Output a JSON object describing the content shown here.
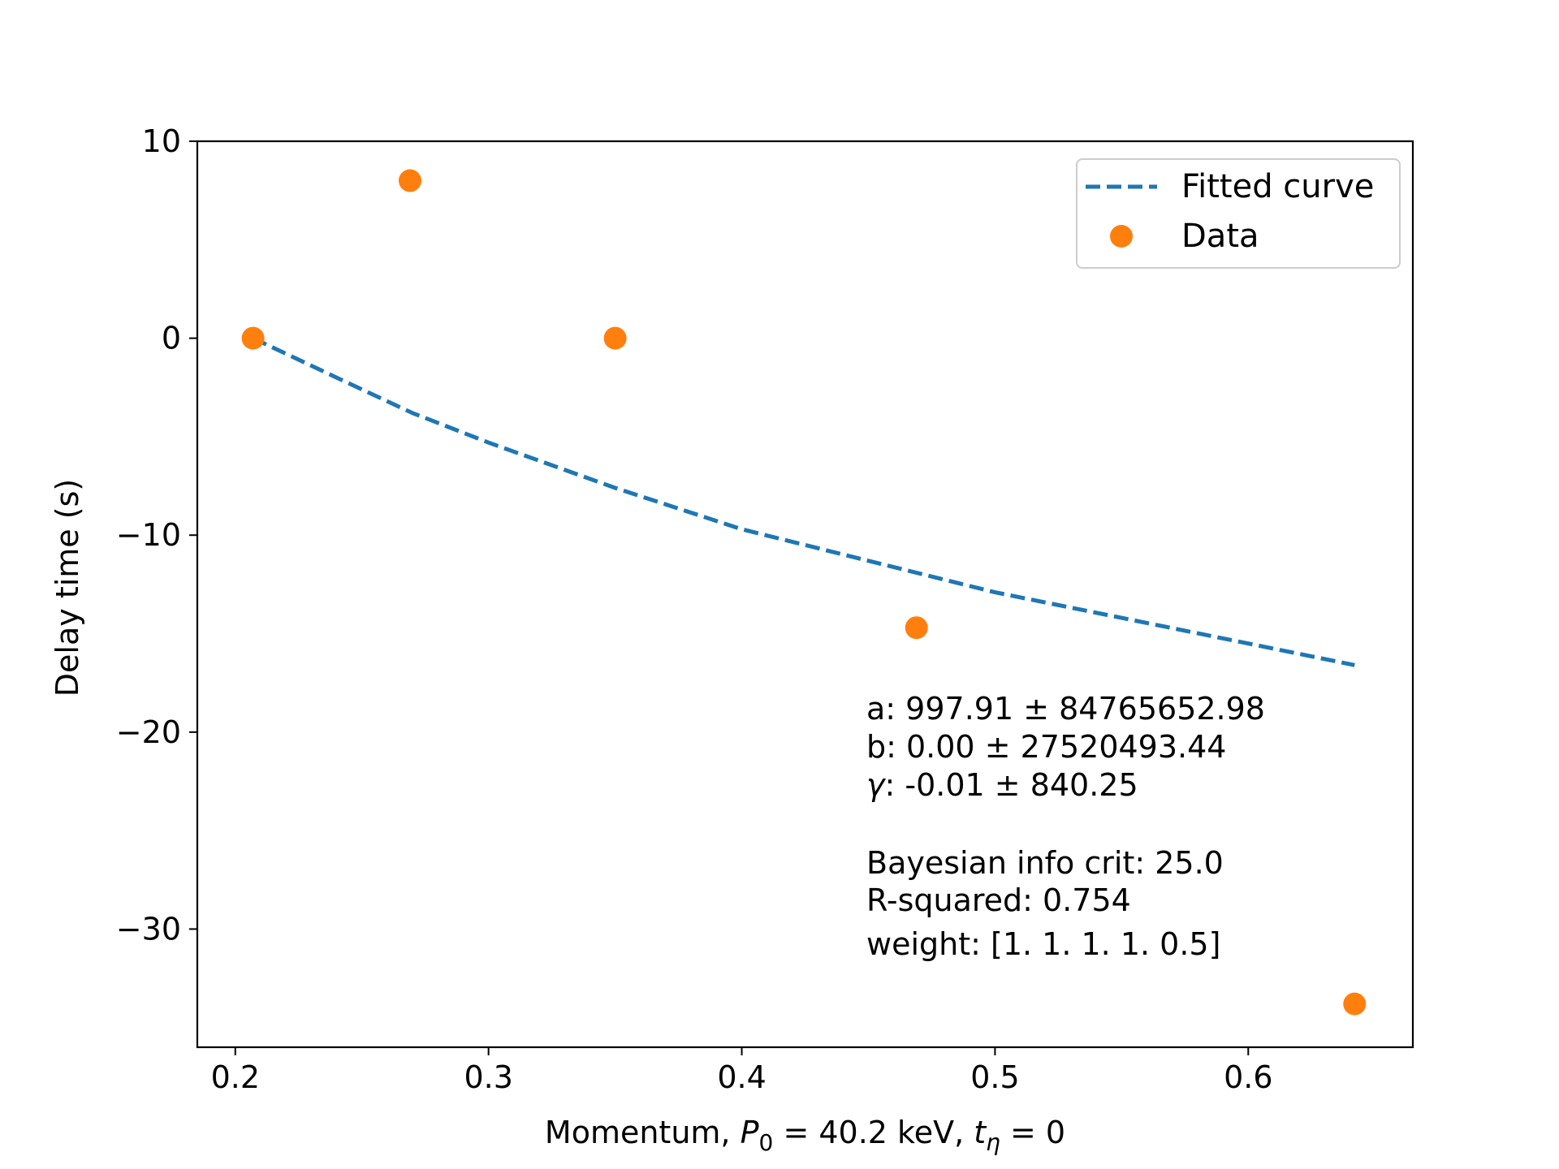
{
  "chart_data": {
    "type": "scatter",
    "xlabel_parts": {
      "prefix": "Momentum, ",
      "p_var": "P",
      "p_sub": "0",
      "p_val": " = 40.2 keV, ",
      "t_var": "t",
      "t_sub": "η",
      "t_val": " = 0"
    },
    "ylabel": "Delay time (s)",
    "xlim": [
      0.185,
      0.665
    ],
    "ylim": [
      -36,
      10
    ],
    "xticks": [
      0.2,
      0.3,
      0.4,
      0.5,
      0.6
    ],
    "xtick_labels": [
      "0.2",
      "0.3",
      "0.4",
      "0.5",
      "0.6"
    ],
    "yticks": [
      10,
      0,
      -10,
      -20,
      -30
    ],
    "ytick_labels": [
      "10",
      "0",
      "−10",
      "−20",
      "−30"
    ],
    "grid": false,
    "legend_position": "top-right",
    "series": [
      {
        "name": "Fitted curve",
        "kind": "line",
        "style": "dashed",
        "color": "#1f77b4",
        "x": [
          0.207,
          0.24,
          0.27,
          0.3,
          0.35,
          0.4,
          0.45,
          0.5,
          0.55,
          0.6,
          0.642
        ],
        "y": [
          0.0,
          -2.0,
          -3.8,
          -5.3,
          -7.6,
          -9.7,
          -11.3,
          -12.9,
          -14.2,
          -15.5,
          -16.6
        ]
      },
      {
        "name": "Data",
        "kind": "scatter",
        "color": "#ff7f0e",
        "x": [
          0.207,
          0.269,
          0.35,
          0.469,
          0.642
        ],
        "y": [
          0.0,
          8.0,
          0.0,
          -14.7,
          -33.8
        ]
      }
    ],
    "annotations": [
      "a: 997.91 ± 84765652.98",
      "b: 0.00 ± 27520493.44",
      "γ: -0.01 ± 840.25",
      "Bayesian info crit: 25.0",
      "R-squared: 0.754",
      "weight: [1.  1.  1.  1.  0.5]"
    ]
  }
}
